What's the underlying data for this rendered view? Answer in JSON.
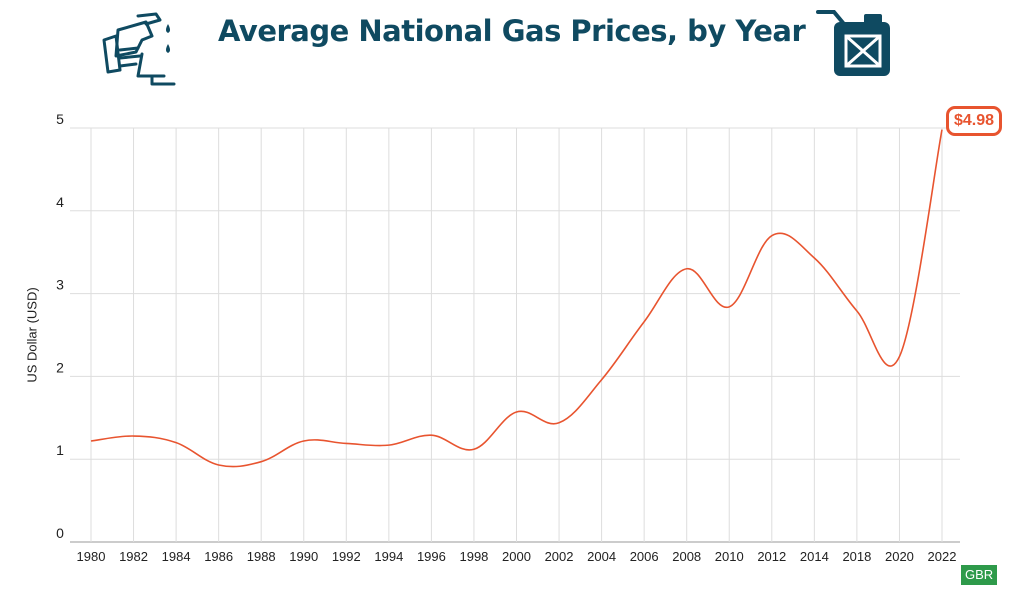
{
  "header": {
    "title": "Average National Gas Prices, by Year"
  },
  "colors": {
    "line": "#e8542f",
    "title": "#0f4a61",
    "icon": "#0f4a61",
    "grid": "#dddddd",
    "watermark_bg": "#2e9a4a"
  },
  "icons": {
    "left": "fuel-nozzle-hand-icon",
    "right": "jerry-can-icon"
  },
  "chart_data": {
    "type": "line",
    "title": "Average National Gas Prices, by Year",
    "xlabel": "",
    "ylabel": "US Dollar (USD)",
    "ylim": [
      0,
      5
    ],
    "yticks": [
      "0",
      "1",
      "2",
      "3",
      "4",
      "5"
    ],
    "categories": [
      "1980",
      "1982",
      "1984",
      "1986",
      "1988",
      "1990",
      "1992",
      "1994",
      "1996",
      "1998",
      "2000",
      "2002",
      "2004",
      "2006",
      "2008",
      "2010",
      "2012",
      "2014",
      "2018",
      "2020",
      "2022"
    ],
    "values": [
      1.22,
      1.28,
      1.2,
      0.93,
      0.97,
      1.22,
      1.19,
      1.17,
      1.29,
      1.12,
      1.57,
      1.44,
      1.96,
      2.66,
      3.3,
      2.84,
      3.7,
      3.43,
      2.79,
      2.24,
      4.98
    ],
    "grid": true,
    "annotation": "$4.98",
    "watermark": "GBR"
  }
}
